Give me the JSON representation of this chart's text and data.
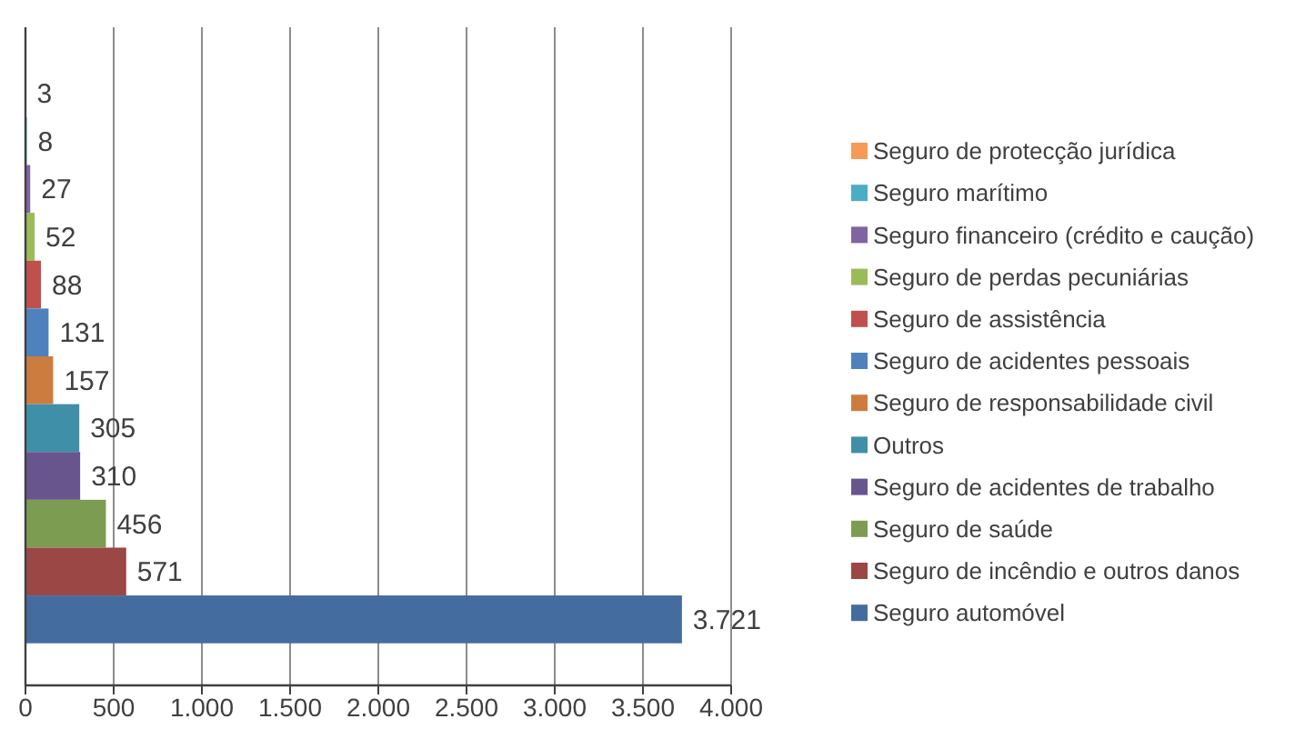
{
  "chart_data": {
    "type": "bar",
    "orientation": "horizontal",
    "categories": [
      null
    ],
    "series": [
      {
        "name": "Seguro de protecção jurídica",
        "color": "#f79a55",
        "values": [
          3
        ],
        "value_labels": [
          "3"
        ]
      },
      {
        "name": "Seguro marítimo",
        "color": "#4bacc6",
        "values": [
          8
        ],
        "value_labels": [
          "8"
        ]
      },
      {
        "name": "Seguro financeiro (crédito e caução)",
        "color": "#8064a2",
        "values": [
          27
        ],
        "value_labels": [
          "27"
        ]
      },
      {
        "name": "Seguro de perdas pecuniárias",
        "color": "#9bbb59",
        "values": [
          52
        ],
        "value_labels": [
          "52"
        ]
      },
      {
        "name": "Seguro de assistência",
        "color": "#c0504d",
        "values": [
          88
        ],
        "value_labels": [
          "88"
        ]
      },
      {
        "name": "Seguro de acidentes pessoais",
        "color": "#4f81bd",
        "values": [
          131
        ],
        "value_labels": [
          "131"
        ]
      },
      {
        "name": "Seguro de responsabilidade civil",
        "color": "#cd7c40",
        "values": [
          157
        ],
        "value_labels": [
          "157"
        ]
      },
      {
        "name": "Outros",
        "color": "#3f8fa8",
        "values": [
          305
        ],
        "value_labels": [
          "305"
        ]
      },
      {
        "name": "Seguro de acidentes de trabalho",
        "color": "#68558e",
        "values": [
          310
        ],
        "value_labels": [
          "310"
        ]
      },
      {
        "name": "Seguro de saúde",
        "color": "#7c9c51",
        "values": [
          456
        ],
        "value_labels": [
          "456"
        ]
      },
      {
        "name": "Seguro de incêndio e outros danos",
        "color": "#9a4746",
        "values": [
          571
        ],
        "value_labels": [
          "571"
        ]
      },
      {
        "name": "Seguro automóvel",
        "color": "#456c9f",
        "values": [
          3721
        ],
        "value_labels": [
          "3.721"
        ]
      }
    ],
    "xlim": [
      0,
      4000
    ],
    "xticks": [
      0,
      500,
      {
        "value": 1000,
        "label": "1.000"
      },
      {
        "value": 1500,
        "label": "1.500"
      },
      {
        "value": 2000,
        "label": "2.000"
      },
      {
        "value": 2500,
        "label": "2.500"
      },
      {
        "value": 3000,
        "label": "3.000"
      },
      {
        "value": 3500,
        "label": "3.500"
      },
      {
        "value": 4000,
        "label": "4.000"
      }
    ],
    "grid": "x",
    "legend": "right"
  }
}
